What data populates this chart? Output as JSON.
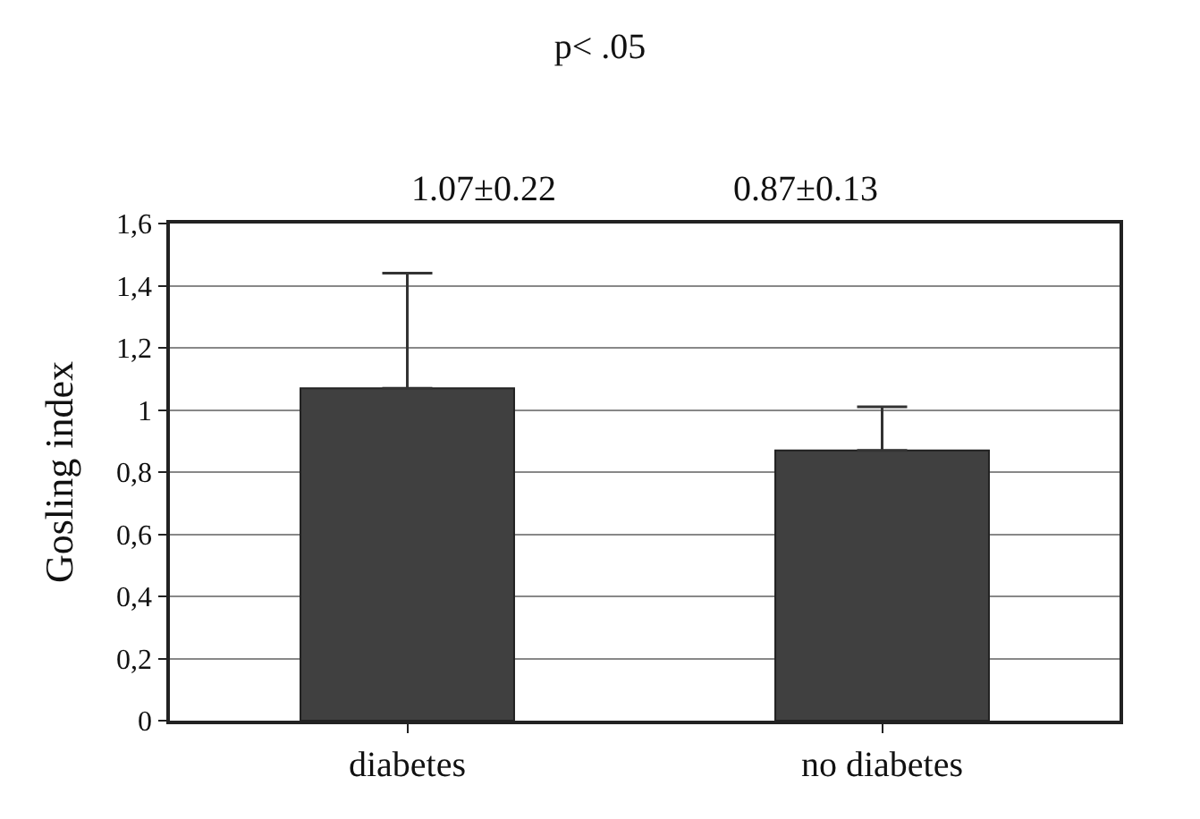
{
  "chart_data": {
    "type": "bar",
    "title": "p< .05",
    "ylabel": "Gosling index",
    "categories": [
      "diabetes",
      "no diabetes"
    ],
    "values": [
      1.07,
      0.87
    ],
    "errors": [
      [
        1.07,
        1.44
      ],
      [
        0.87,
        1.01
      ]
    ],
    "color": "#404040",
    "ylim": [
      0,
      1.6
    ],
    "yticks": [
      0,
      {
        "value": 0.2,
        "label": "0,2"
      },
      {
        "value": 0.4,
        "label": "0,4"
      },
      {
        "value": 0.6,
        "label": "0,6"
      },
      {
        "value": 0.8,
        "label": "0,8"
      },
      1,
      {
        "value": 1.2,
        "label": "1,2"
      },
      {
        "value": 1.4,
        "label": "1,4"
      },
      {
        "value": 1.6,
        "label": "1,6"
      }
    ],
    "grid": "y",
    "annotations": [
      "1.07±0.22",
      "0.87±0.13"
    ]
  }
}
